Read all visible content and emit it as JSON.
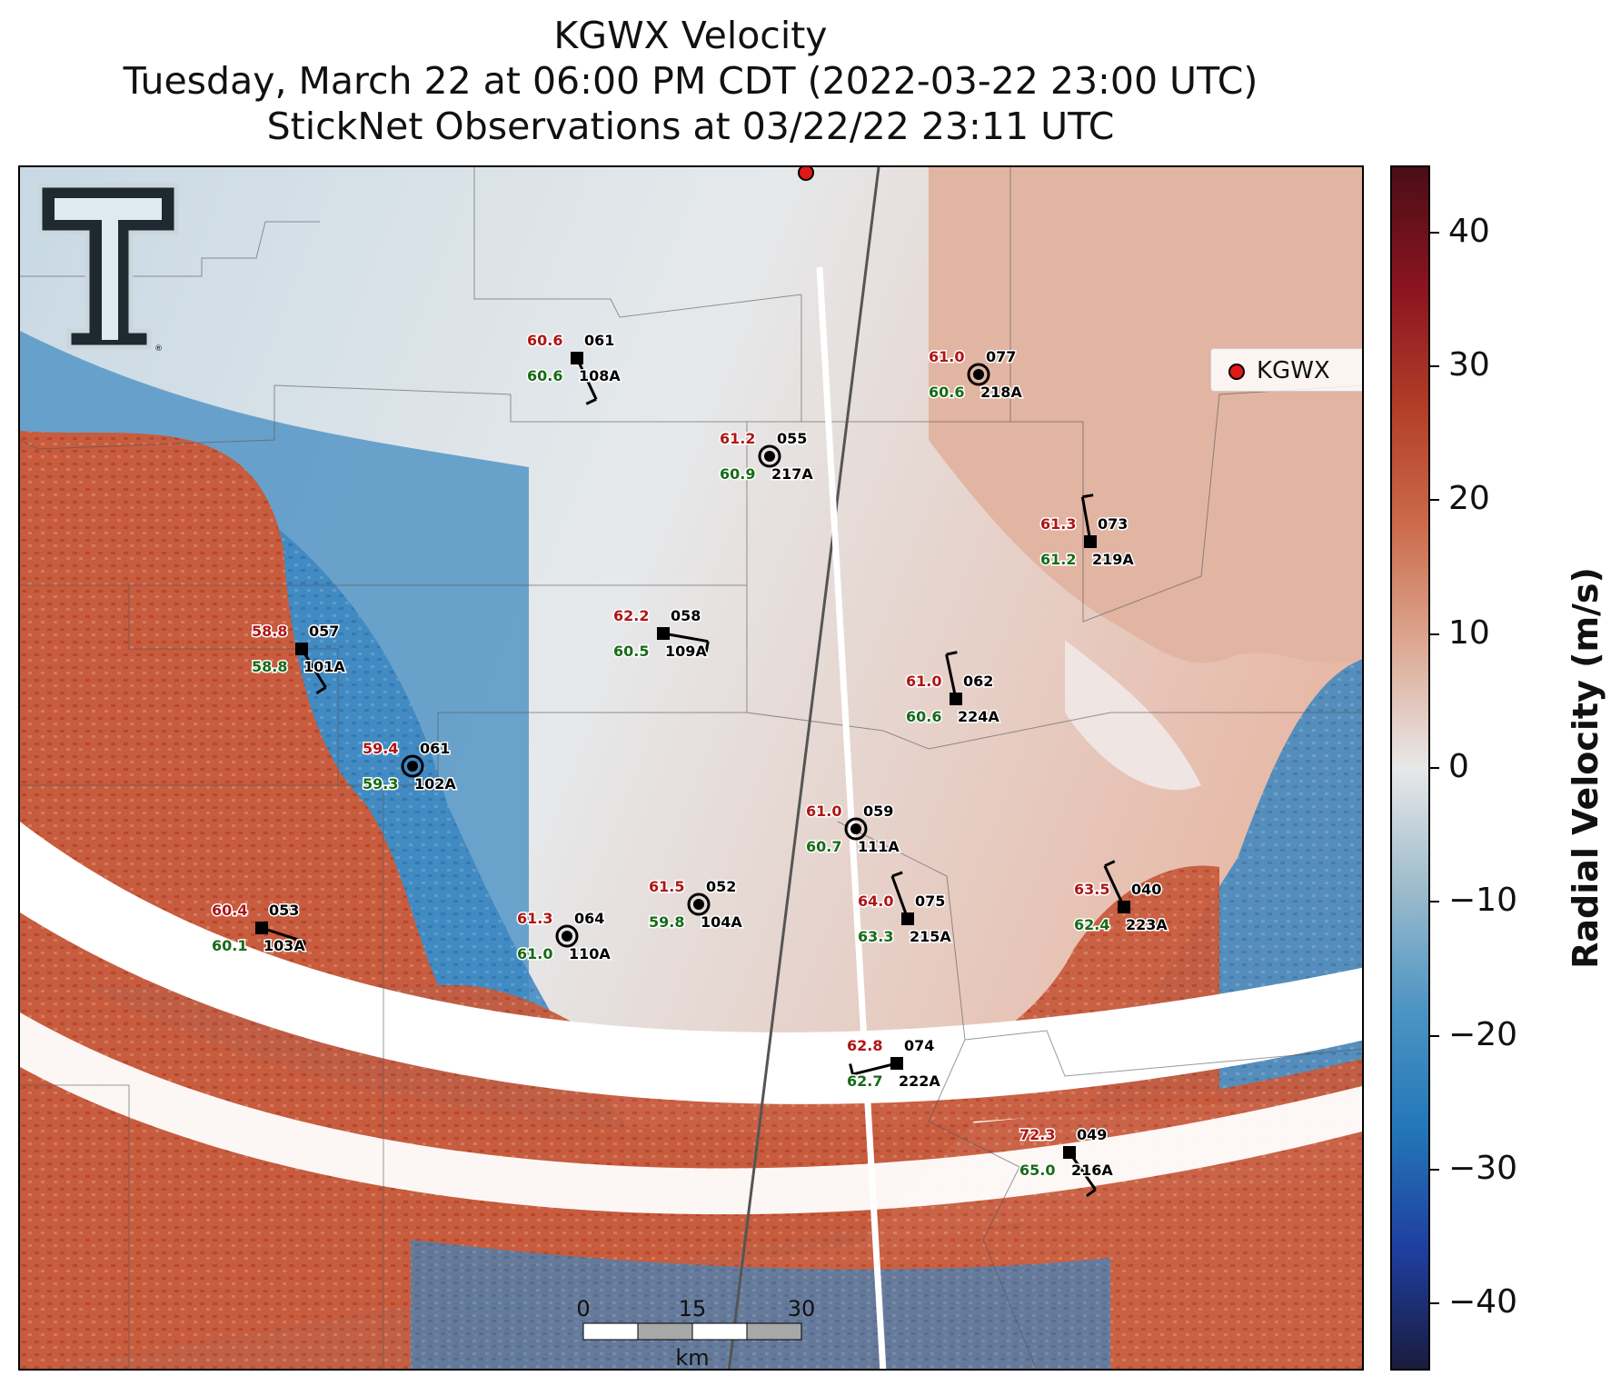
{
  "title": {
    "line1": "KGWX Velocity",
    "line2": "Tuesday, March 22 at 06:00 PM CDT (2022-03-22 23:00 UTC)",
    "line3": "StickNet Observations at 03/22/22 23:11 UTC"
  },
  "legend": {
    "label": "KGWX",
    "marker_color": "#e01818"
  },
  "colorbar": {
    "title": "Radial Velocity (m/s)",
    "min": -45,
    "max": 45,
    "ticks": [
      "40",
      "30",
      "20",
      "10",
      "0",
      "−10",
      "−20",
      "−30",
      "−40"
    ],
    "colors": [
      "#1a1c3d",
      "#1f3fa0",
      "#2377b8",
      "#4d94c4",
      "#9dbccc",
      "#e8e8e8",
      "#ddaa95",
      "#cc6c4c",
      "#b23e28",
      "#8a1420",
      "#4a0e16"
    ]
  },
  "scalebar": {
    "ticks": [
      "0",
      "15",
      "30"
    ],
    "unit": "km"
  },
  "logo": {
    "icon": "texas-tech-double-t-logo",
    "mark": "®"
  },
  "stations": [
    {
      "id": "108A",
      "temp": "60.6",
      "dew": "60.6",
      "wind": "061",
      "marker": "square"
    },
    {
      "id": "218A",
      "temp": "61.0",
      "dew": "60.6",
      "wind": "077",
      "marker": "circle"
    },
    {
      "id": "217A",
      "temp": "61.2",
      "dew": "60.9",
      "wind": "055",
      "marker": "circle"
    },
    {
      "id": "219A",
      "temp": "61.3",
      "dew": "61.2",
      "wind": "073",
      "marker": "square"
    },
    {
      "id": "101A",
      "temp": "58.8",
      "dew": "58.8",
      "wind": "057",
      "marker": "square"
    },
    {
      "id": "109A",
      "temp": "62.2",
      "dew": "60.5",
      "wind": "058",
      "marker": "square"
    },
    {
      "id": "224A",
      "temp": "61.0",
      "dew": "60.6",
      "wind": "062",
      "marker": "square"
    },
    {
      "id": "102A",
      "temp": "59.4",
      "dew": "59.3",
      "wind": "061",
      "marker": "circle"
    },
    {
      "id": "111A",
      "temp": "61.0",
      "dew": "60.7",
      "wind": "059",
      "marker": "circle"
    },
    {
      "id": "104A",
      "temp": "61.5",
      "dew": "59.8",
      "wind": "052",
      "marker": "circle"
    },
    {
      "id": "215A",
      "temp": "64.0",
      "dew": "63.3",
      "wind": "075",
      "marker": "square"
    },
    {
      "id": "223A",
      "temp": "63.5",
      "dew": "62.4",
      "wind": "040",
      "marker": "square"
    },
    {
      "id": "103A",
      "temp": "60.4",
      "dew": "60.1",
      "wind": "053",
      "marker": "square"
    },
    {
      "id": "110A",
      "temp": "61.3",
      "dew": "61.0",
      "wind": "064",
      "marker": "circle"
    },
    {
      "id": "222A",
      "temp": "62.8",
      "dew": "62.7",
      "wind": "074",
      "marker": "square"
    },
    {
      "id": "216A",
      "temp": "72.3",
      "dew": "65.0",
      "wind": "049",
      "marker": "square"
    }
  ]
}
